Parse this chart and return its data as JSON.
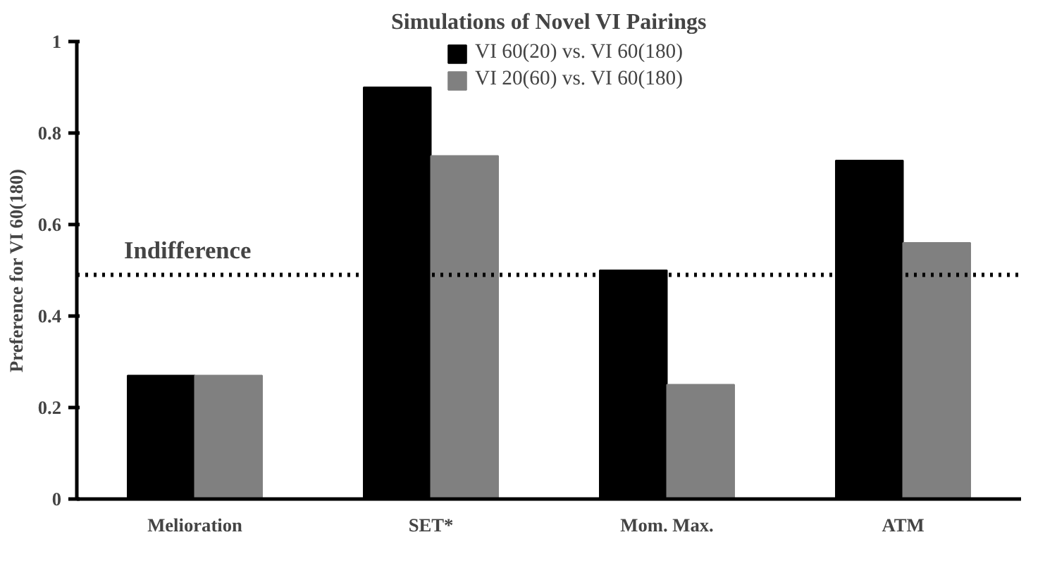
{
  "chart_data": {
    "type": "bar",
    "title": "Simulations of Novel VI Pairings",
    "ylabel": "Preference for VI 60(180)",
    "categories": [
      "Melioration",
      "SET*",
      "Mom. Max.",
      "ATM"
    ],
    "series": [
      {
        "name": "VI 60(20) vs. VI 60(180)",
        "color": "#000000",
        "values": [
          0.27,
          0.9,
          0.5,
          0.74
        ]
      },
      {
        "name": "VI 20(60) vs. VI 60(180)",
        "color": "#808080",
        "values": [
          0.27,
          0.75,
          0.25,
          0.56
        ]
      }
    ],
    "ylim": [
      0,
      1
    ],
    "yticks": [
      0,
      0.2,
      0.4,
      0.6,
      0.8,
      1
    ],
    "ref_lines": [
      {
        "axis": "y",
        "value": 0.49,
        "label": "Indifference",
        "line_style": "dotted",
        "color": "#000000"
      }
    ],
    "legend": "top",
    "grid": false
  }
}
